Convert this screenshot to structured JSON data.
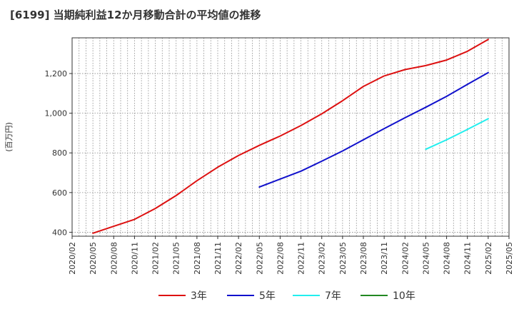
{
  "chart_data": {
    "type": "line",
    "title": "[6199]  当期純利益12か月移動合計の平均値の推移",
    "ylabel": "(百万円)",
    "xlabel": "",
    "ylim": [
      380,
      1380
    ],
    "yticks": [
      400,
      600,
      800,
      1000,
      1200
    ],
    "ytick_labels": [
      "400",
      "600",
      "800",
      "1,000",
      "1,200"
    ],
    "x_ticks": [
      "2020/02",
      "2020/05",
      "2020/08",
      "2020/11",
      "2021/02",
      "2021/05",
      "2021/08",
      "2021/11",
      "2022/02",
      "2022/05",
      "2022/08",
      "2022/11",
      "2023/02",
      "2023/05",
      "2023/08",
      "2023/11",
      "2024/02",
      "2024/05",
      "2024/08",
      "2024/11",
      "2025/02",
      "2025/05"
    ],
    "grid": true,
    "legend_position": "bottom",
    "series": [
      {
        "name": "3年",
        "color": "#dd1111",
        "x": [
          "2020/05",
          "2020/08",
          "2020/11",
          "2021/02",
          "2021/05",
          "2021/08",
          "2021/11",
          "2022/02",
          "2022/05",
          "2022/08",
          "2022/11",
          "2023/02",
          "2023/05",
          "2023/08",
          "2023/11",
          "2024/02",
          "2024/05",
          "2024/08",
          "2024/11",
          "2025/02"
        ],
        "values": [
          395,
          430,
          465,
          520,
          585,
          660,
          728,
          787,
          838,
          885,
          938,
          997,
          1063,
          1135,
          1188,
          1220,
          1240,
          1268,
          1312,
          1372
        ]
      },
      {
        "name": "5年",
        "color": "#1111cc",
        "x": [
          "2022/05",
          "2022/08",
          "2022/11",
          "2023/02",
          "2023/05",
          "2023/08",
          "2023/11",
          "2024/02",
          "2024/05",
          "2024/08",
          "2024/11",
          "2025/02"
        ],
        "values": [
          628,
          668,
          708,
          758,
          810,
          866,
          922,
          977,
          1030,
          1085,
          1145,
          1205
        ]
      },
      {
        "name": "7年",
        "color": "#22eeee",
        "x": [
          "2024/05",
          "2024/08",
          "2024/11",
          "2025/02"
        ],
        "values": [
          818,
          866,
          918,
          972
        ]
      },
      {
        "name": "10年",
        "color": "#228822",
        "x": [],
        "values": []
      }
    ]
  }
}
